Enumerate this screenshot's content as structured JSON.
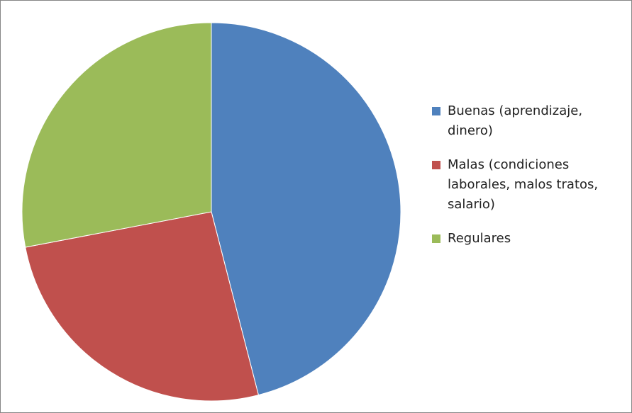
{
  "chart_data": {
    "type": "pie",
    "categories": [
      "Buenas (aprendizaje, dinero)",
      "Malas (condiciones laborales, malos tratos, salario)",
      "Regulares"
    ],
    "values": [
      46,
      26,
      28
    ],
    "colors": [
      "#4f81bd",
      "#c0504d",
      "#9bbb59"
    ],
    "legend": "right"
  }
}
